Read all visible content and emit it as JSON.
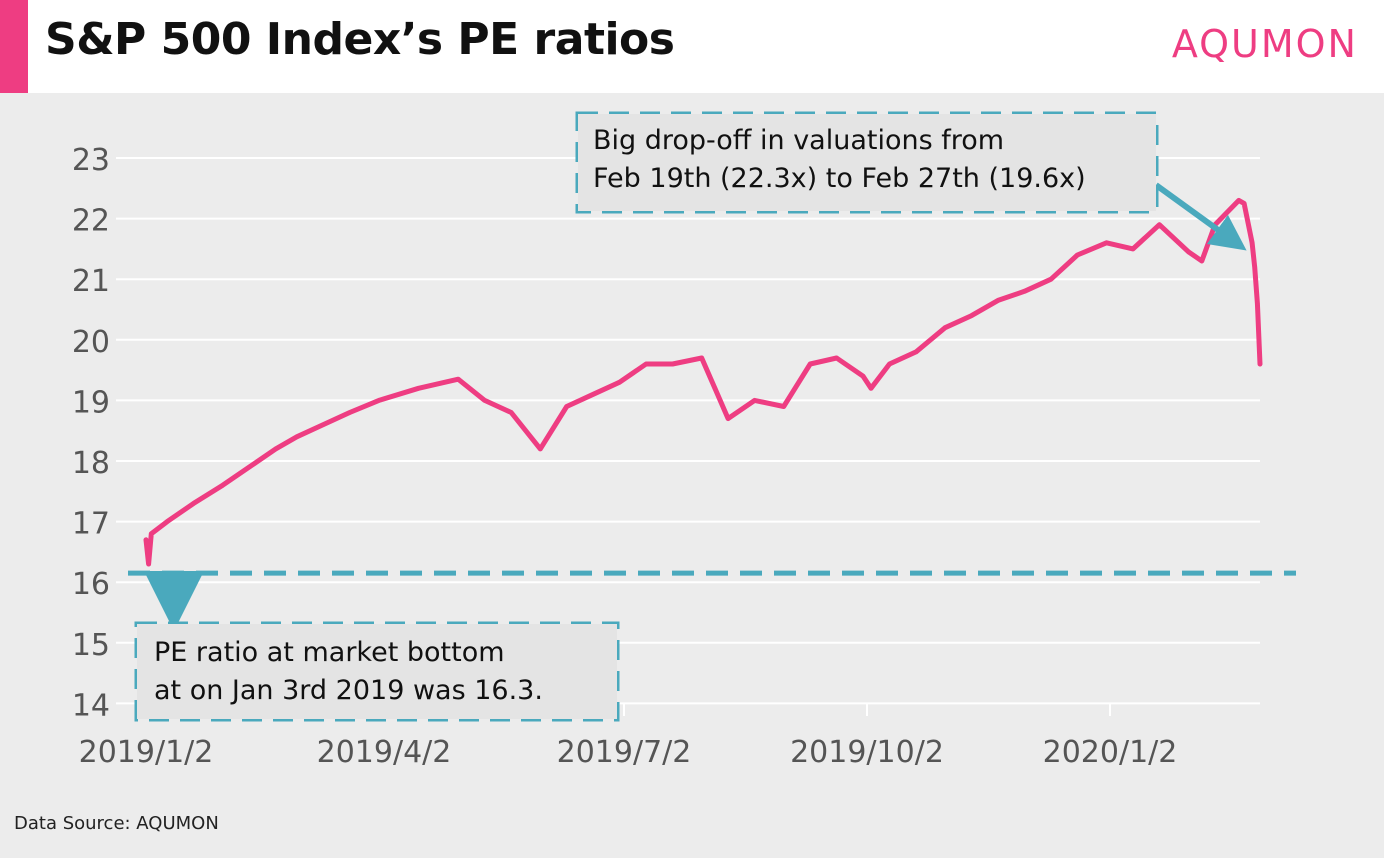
{
  "header": {
    "title": "S&P 500 Index’s PE ratios",
    "brand": "AQUMON"
  },
  "footer": {
    "source": "Data Source: AQUMON"
  },
  "colors": {
    "accent": "#ee3d82",
    "line": "#ee3d82",
    "annotation": "#4aa9bd",
    "panel": "#ececec",
    "grid": "#ffffff"
  },
  "annotations": {
    "top": {
      "line1": "Big drop-off in valuations from",
      "line2": "Feb 19th (22.3x) to Feb 27th (19.6x)"
    },
    "bottom": {
      "line1": " PE ratio at market bottom",
      "line2": "at on Jan 3rd 2019 was 16.3."
    },
    "reference_line_value": 16.15
  },
  "chart_data": {
    "type": "line",
    "title": "S&P 500 Index’s PE ratios",
    "xlabel": "",
    "ylabel": "",
    "ylim": [
      14,
      23
    ],
    "yticks": [
      14,
      15,
      16,
      17,
      18,
      19,
      20,
      21,
      22,
      23
    ],
    "xticks": [
      "2019/1/2",
      "2019/4/2",
      "2019/7/2",
      "2019/10/2",
      "2020/1/2"
    ],
    "grid": true,
    "legend": "none",
    "series": [
      {
        "x": [
          "2019-01-02",
          "2019-01-03",
          "2019-01-04",
          "2019-01-10",
          "2019-01-20",
          "2019-01-31",
          "2019-02-10",
          "2019-02-20",
          "2019-02-28",
          "2019-03-10",
          "2019-03-20",
          "2019-03-31",
          "2019-04-15",
          "2019-04-30",
          "2019-05-10",
          "2019-05-20",
          "2019-05-31",
          "2019-06-10",
          "2019-06-20",
          "2019-06-30",
          "2019-07-10",
          "2019-07-20",
          "2019-07-31",
          "2019-08-05",
          "2019-08-10",
          "2019-08-20",
          "2019-08-31",
          "2019-09-10",
          "2019-09-20",
          "2019-09-30",
          "2019-10-03",
          "2019-10-10",
          "2019-10-20",
          "2019-10-31",
          "2019-11-10",
          "2019-11-20",
          "2019-11-30",
          "2019-12-10",
          "2019-12-20",
          "2019-12-31",
          "2020-01-10",
          "2020-01-20",
          "2020-01-31",
          "2020-02-05",
          "2020-02-10",
          "2020-02-19",
          "2020-02-21",
          "2020-02-24",
          "2020-02-25",
          "2020-02-26",
          "2020-02-27"
        ],
        "y": [
          16.7,
          16.3,
          16.8,
          17.0,
          17.3,
          17.6,
          17.9,
          18.2,
          18.4,
          18.6,
          18.8,
          19.0,
          19.2,
          19.35,
          19.0,
          18.8,
          18.2,
          18.9,
          19.1,
          19.3,
          19.6,
          19.6,
          19.7,
          19.2,
          18.7,
          19.0,
          18.9,
          19.6,
          19.7,
          19.4,
          19.2,
          19.6,
          19.8,
          20.2,
          20.4,
          20.65,
          20.8,
          21.0,
          21.4,
          21.6,
          21.5,
          21.9,
          21.45,
          21.3,
          21.9,
          22.3,
          22.25,
          21.6,
          21.2,
          20.6,
          19.6
        ]
      }
    ]
  }
}
